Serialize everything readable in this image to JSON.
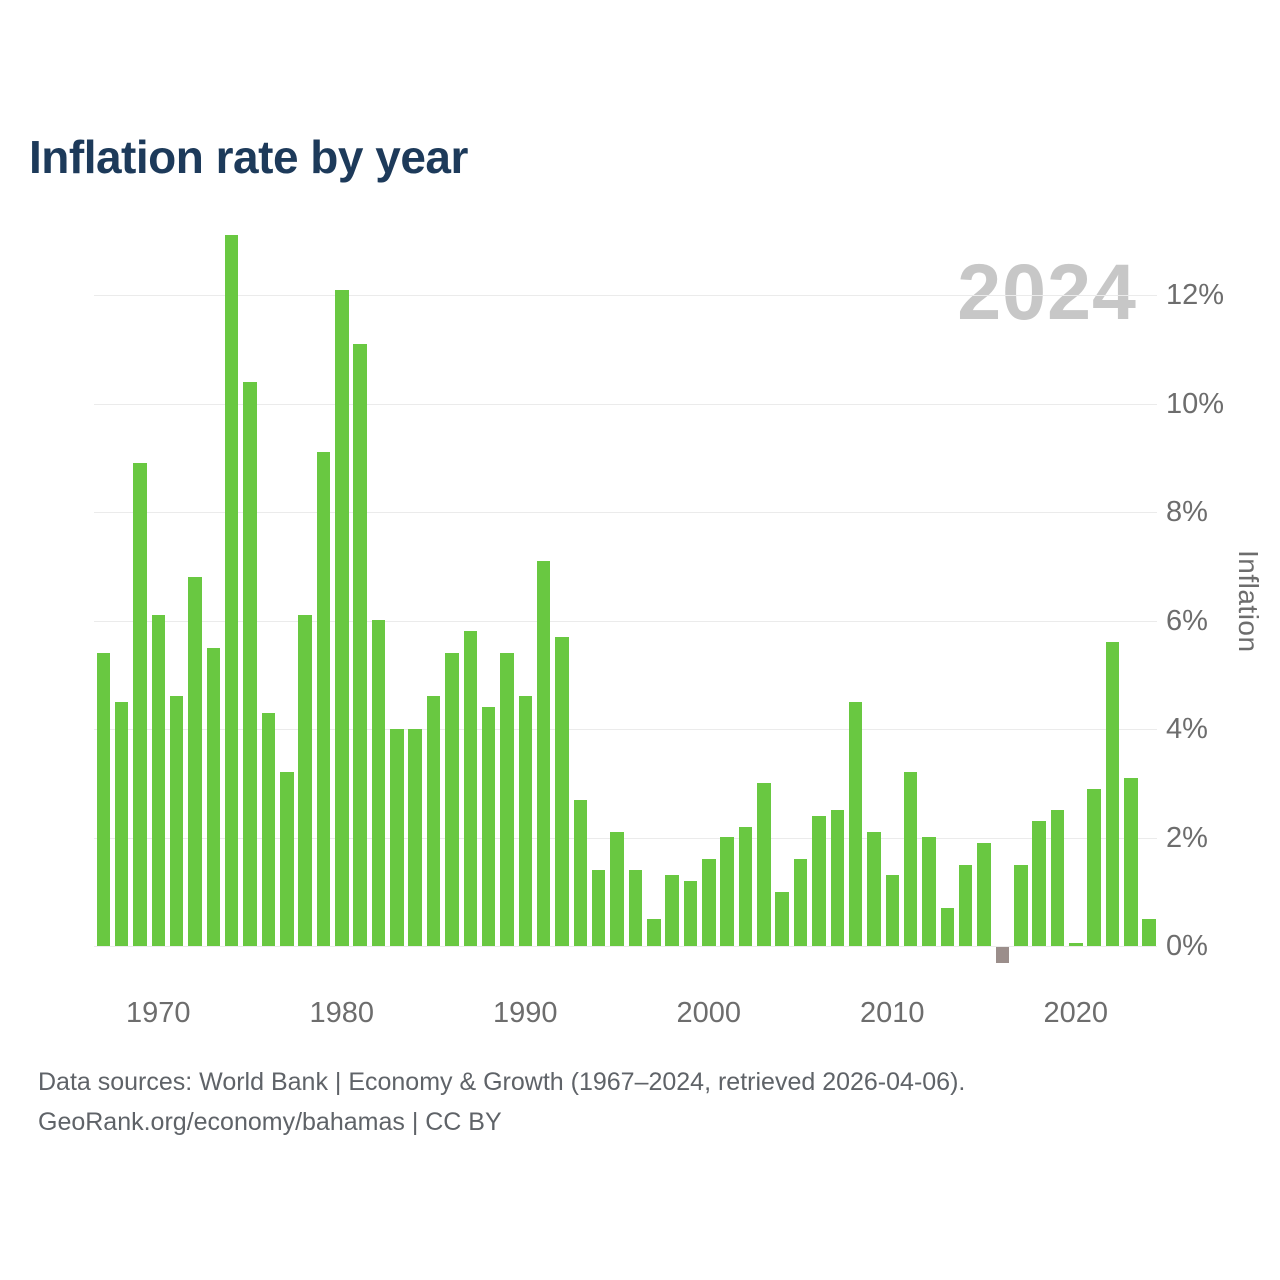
{
  "header": {
    "title": "Inflation rate by year",
    "watermark_year": "2024"
  },
  "footer": {
    "line1": "Data sources: World Bank | Economy & Growth (1967–2024, retrieved 2026-04-06).",
    "line2": "GeoRank.org/economy/bahamas | CC BY"
  },
  "colors": {
    "title": "#1d3a5a",
    "watermark": "#c7c7c7",
    "axis_text": "#6d6d6d",
    "gridline": "#ebebeb",
    "bar_positive": "#69c841",
    "bar_negative": "#9b8e8b",
    "background": "#ffffff"
  },
  "chart_data": {
    "type": "bar",
    "title": "Inflation rate by year",
    "xlabel": "",
    "ylabel": "Inflation",
    "legend": null,
    "grid": true,
    "y_tick_suffix": "%",
    "y_ticks": [
      0,
      2,
      4,
      6,
      8,
      10,
      12
    ],
    "x_ticks": [
      1970,
      1980,
      1990,
      2000,
      2010,
      2020
    ],
    "ylim": [
      -0.6,
      13.3
    ],
    "x": [
      1967,
      1968,
      1969,
      1970,
      1971,
      1972,
      1973,
      1974,
      1975,
      1976,
      1977,
      1978,
      1979,
      1980,
      1981,
      1982,
      1983,
      1984,
      1985,
      1986,
      1987,
      1988,
      1989,
      1990,
      1991,
      1992,
      1993,
      1994,
      1995,
      1996,
      1997,
      1998,
      1999,
      2000,
      2001,
      2002,
      2003,
      2004,
      2005,
      2006,
      2007,
      2008,
      2009,
      2010,
      2011,
      2012,
      2013,
      2014,
      2015,
      2016,
      2017,
      2018,
      2019,
      2020,
      2021,
      2022,
      2023,
      2024
    ],
    "values": [
      5.4,
      4.5,
      8.9,
      6.1,
      4.6,
      6.8,
      5.5,
      13.1,
      10.4,
      4.3,
      3.2,
      6.1,
      9.1,
      12.1,
      11.1,
      6.0,
      4.0,
      4.0,
      4.6,
      5.4,
      5.8,
      4.4,
      5.4,
      4.6,
      7.1,
      5.7,
      2.7,
      1.4,
      2.1,
      1.4,
      0.5,
      1.3,
      1.2,
      1.6,
      2.0,
      2.2,
      3.0,
      1.0,
      1.6,
      2.4,
      2.5,
      4.5,
      2.1,
      1.3,
      3.2,
      2.0,
      0.7,
      1.5,
      1.9,
      -0.3,
      1.5,
      2.3,
      2.5,
      0.06,
      2.9,
      5.6,
      3.1,
      0.5
    ]
  }
}
